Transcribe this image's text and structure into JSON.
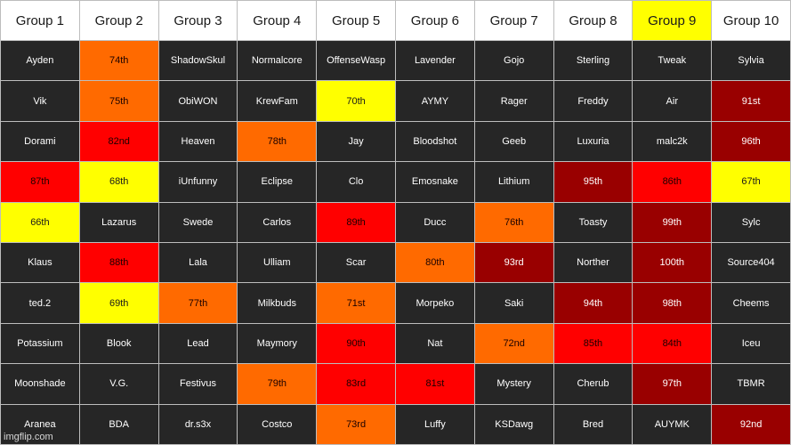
{
  "colors": {
    "default_bg": "#262626",
    "header_bg": "#ffffff",
    "orange": "#ff6a00",
    "red": "#ff0000",
    "dark_red": "#990000",
    "yellow": "#ffff00"
  },
  "headers": [
    {
      "label": "Group 1",
      "color": "white"
    },
    {
      "label": "Group 2",
      "color": "white"
    },
    {
      "label": "Group 3",
      "color": "white"
    },
    {
      "label": "Group 4",
      "color": "white"
    },
    {
      "label": "Group 5",
      "color": "white"
    },
    {
      "label": "Group 6",
      "color": "white"
    },
    {
      "label": "Group 7",
      "color": "white"
    },
    {
      "label": "Group 8",
      "color": "white"
    },
    {
      "label": "Group 9",
      "color": "yellow"
    },
    {
      "label": "Group 10",
      "color": "white"
    }
  ],
  "rows": [
    [
      {
        "text": "Ayden",
        "color": "default"
      },
      {
        "text": "74th",
        "color": "orange"
      },
      {
        "text": "ShadowSkul",
        "color": "default"
      },
      {
        "text": "Normalcore",
        "color": "default"
      },
      {
        "text": "OffenseWasp",
        "color": "default"
      },
      {
        "text": "Lavender",
        "color": "default"
      },
      {
        "text": "Gojo",
        "color": "default"
      },
      {
        "text": "Sterling",
        "color": "default"
      },
      {
        "text": "Tweak",
        "color": "default"
      },
      {
        "text": "Sylvia",
        "color": "default"
      }
    ],
    [
      {
        "text": "Vik",
        "color": "default"
      },
      {
        "text": "75th",
        "color": "orange"
      },
      {
        "text": "ObiWON",
        "color": "default"
      },
      {
        "text": "KrewFam",
        "color": "default"
      },
      {
        "text": "70th",
        "color": "yellow"
      },
      {
        "text": "AYMY",
        "color": "default"
      },
      {
        "text": "Rager",
        "color": "default"
      },
      {
        "text": "Freddy",
        "color": "default"
      },
      {
        "text": "Air",
        "color": "default"
      },
      {
        "text": "91st",
        "color": "dark_red"
      }
    ],
    [
      {
        "text": "Dorami",
        "color": "default"
      },
      {
        "text": "82nd",
        "color": "red"
      },
      {
        "text": "Heaven",
        "color": "default"
      },
      {
        "text": "78th",
        "color": "orange"
      },
      {
        "text": "Jay",
        "color": "default"
      },
      {
        "text": "Bloodshot",
        "color": "default"
      },
      {
        "text": "Geeb",
        "color": "default"
      },
      {
        "text": "Luxuria",
        "color": "default"
      },
      {
        "text": "malc2k",
        "color": "default"
      },
      {
        "text": "96th",
        "color": "dark_red"
      }
    ],
    [
      {
        "text": "87th",
        "color": "red"
      },
      {
        "text": "68th",
        "color": "yellow"
      },
      {
        "text": "iUnfunny",
        "color": "default"
      },
      {
        "text": "Eclipse",
        "color": "default"
      },
      {
        "text": "Clo",
        "color": "default"
      },
      {
        "text": "Emosnake",
        "color": "default"
      },
      {
        "text": "Lithium",
        "color": "default"
      },
      {
        "text": "95th",
        "color": "dark_red"
      },
      {
        "text": "86th",
        "color": "red"
      },
      {
        "text": "67th",
        "color": "yellow"
      }
    ],
    [
      {
        "text": "66th",
        "color": "yellow"
      },
      {
        "text": "Lazarus",
        "color": "default"
      },
      {
        "text": "Swede",
        "color": "default"
      },
      {
        "text": "Carlos",
        "color": "default"
      },
      {
        "text": "89th",
        "color": "red"
      },
      {
        "text": "Ducc",
        "color": "default"
      },
      {
        "text": "76th",
        "color": "orange"
      },
      {
        "text": "Toasty",
        "color": "default"
      },
      {
        "text": "99th",
        "color": "dark_red"
      },
      {
        "text": "Sylc",
        "color": "default"
      }
    ],
    [
      {
        "text": "Klaus",
        "color": "default"
      },
      {
        "text": "88th",
        "color": "red"
      },
      {
        "text": "Lala",
        "color": "default"
      },
      {
        "text": "Ulliam",
        "color": "default"
      },
      {
        "text": "Scar",
        "color": "default"
      },
      {
        "text": "80th",
        "color": "orange"
      },
      {
        "text": "93rd",
        "color": "dark_red"
      },
      {
        "text": "Norther",
        "color": "default"
      },
      {
        "text": "100th",
        "color": "dark_red"
      },
      {
        "text": "Source404",
        "color": "default"
      }
    ],
    [
      {
        "text": "ted.2",
        "color": "default"
      },
      {
        "text": "69th",
        "color": "yellow"
      },
      {
        "text": "77th",
        "color": "orange"
      },
      {
        "text": "Milkbuds",
        "color": "default"
      },
      {
        "text": "71st",
        "color": "orange"
      },
      {
        "text": "Morpeko",
        "color": "default"
      },
      {
        "text": "Saki",
        "color": "default"
      },
      {
        "text": "94th",
        "color": "dark_red"
      },
      {
        "text": "98th",
        "color": "dark_red"
      },
      {
        "text": "Cheems",
        "color": "default"
      }
    ],
    [
      {
        "text": "Potassium",
        "color": "default"
      },
      {
        "text": "Blook",
        "color": "default"
      },
      {
        "text": "Lead",
        "color": "default"
      },
      {
        "text": "Maymory",
        "color": "default"
      },
      {
        "text": "90th",
        "color": "red"
      },
      {
        "text": "Nat",
        "color": "default"
      },
      {
        "text": "72nd",
        "color": "orange"
      },
      {
        "text": "85th",
        "color": "red"
      },
      {
        "text": "84th",
        "color": "red"
      },
      {
        "text": "Iceu",
        "color": "default"
      }
    ],
    [
      {
        "text": "Moonshade",
        "color": "default"
      },
      {
        "text": "V.G.",
        "color": "default"
      },
      {
        "text": "Festivus",
        "color": "default"
      },
      {
        "text": "79th",
        "color": "orange"
      },
      {
        "text": "83rd",
        "color": "red"
      },
      {
        "text": "81st",
        "color": "red"
      },
      {
        "text": "Mystery",
        "color": "default"
      },
      {
        "text": "Cherub",
        "color": "default"
      },
      {
        "text": "97th",
        "color": "dark_red"
      },
      {
        "text": "TBMR",
        "color": "default"
      }
    ],
    [
      {
        "text": "Aranea",
        "color": "default"
      },
      {
        "text": "BDA",
        "color": "default"
      },
      {
        "text": "dr.s3x",
        "color": "default"
      },
      {
        "text": "Costco",
        "color": "default"
      },
      {
        "text": "73rd",
        "color": "orange"
      },
      {
        "text": "Luffy",
        "color": "default"
      },
      {
        "text": "KSDawg",
        "color": "default"
      },
      {
        "text": "Bred",
        "color": "default"
      },
      {
        "text": "AUYMK",
        "color": "default"
      },
      {
        "text": "92nd",
        "color": "dark_red"
      }
    ]
  ],
  "watermark": "imgflip.com"
}
